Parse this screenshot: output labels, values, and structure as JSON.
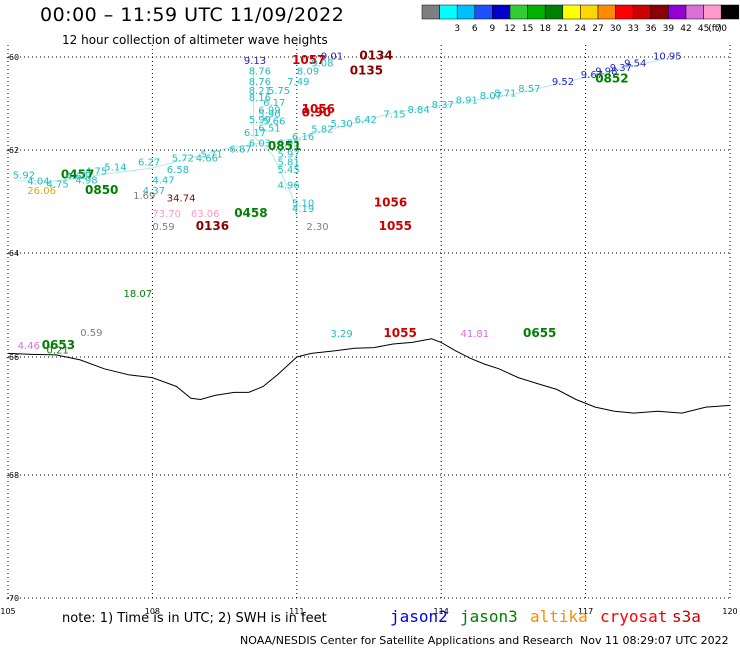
{
  "title": "00:00 – 11:59 UTC 11/09/2022",
  "subtitle": "12 hour collection of altimeter wave heights",
  "legend": {
    "unit": "(ft)",
    "swatches": [
      {
        "label": "",
        "color": "#7f7f7f"
      },
      {
        "label": "3",
        "color": "#00ffff"
      },
      {
        "label": "6",
        "color": "#00bfff"
      },
      {
        "label": "9",
        "color": "#1e50ff"
      },
      {
        "label": "12",
        "color": "#0000cd"
      },
      {
        "label": "15",
        "color": "#32cd32"
      },
      {
        "label": "18",
        "color": "#00b000"
      },
      {
        "label": "21",
        "color": "#008000"
      },
      {
        "label": "24",
        "color": "#ffff00"
      },
      {
        "label": "27",
        "color": "#ffd700"
      },
      {
        "label": "30",
        "color": "#ff8c00"
      },
      {
        "label": "33",
        "color": "#ff0000"
      },
      {
        "label": "36",
        "color": "#cd0000"
      },
      {
        "label": "39",
        "color": "#8b0000"
      },
      {
        "label": "42",
        "color": "#9400d3"
      },
      {
        "label": "45",
        "color": "#da70d6"
      },
      {
        "label": "70",
        "color": "#ff99cc"
      },
      {
        "label": "",
        "color": "#000000"
      }
    ]
  },
  "axes": {
    "lat_labels": [
      "-60",
      "-62",
      "-64",
      "-66",
      "-68",
      "-70"
    ],
    "lon_labels": [
      "105",
      "108",
      "111",
      "114",
      "117",
      "120"
    ]
  },
  "observations": [
    {
      "text": "9.01",
      "lon": 111.5,
      "lat": -60.05,
      "color": "#1e1ecd"
    },
    {
      "text": "0134",
      "lon": 112.3,
      "lat": -60.05,
      "color": "#8b0000",
      "bold": true
    },
    {
      "text": "9.13",
      "lon": 109.9,
      "lat": -60.15,
      "color": "#1e1ecd"
    },
    {
      "text": "1057",
      "lon": 110.9,
      "lat": -60.15,
      "color": "#cd0000",
      "bold": true
    },
    {
      "text": "9.08",
      "lon": 111.3,
      "lat": -60.2,
      "color": "#20c0c0"
    },
    {
      "text": "10.95",
      "lon": 118.4,
      "lat": -60.05,
      "color": "#1e1ecd"
    },
    {
      "text": "9.54",
      "lon": 117.8,
      "lat": -60.2,
      "color": "#1e1ecd"
    },
    {
      "text": "9.37",
      "lon": 117.5,
      "lat": -60.3,
      "color": "#1e1ecd"
    },
    {
      "text": "8.76",
      "lon": 110.0,
      "lat": -60.38,
      "color": "#20c0c0"
    },
    {
      "text": "8.09",
      "lon": 111.0,
      "lat": -60.38,
      "color": "#20c0c0"
    },
    {
      "text": "0135",
      "lon": 112.1,
      "lat": -60.38,
      "color": "#8b0000",
      "bold": true
    },
    {
      "text": "9.98",
      "lon": 117.2,
      "lat": -60.38,
      "color": "#1e1ecd"
    },
    {
      "text": "9.67",
      "lon": 116.9,
      "lat": -60.45,
      "color": "#1e1ecd"
    },
    {
      "text": "0852",
      "lon": 117.2,
      "lat": -60.55,
      "color": "#008000",
      "bold": true
    },
    {
      "text": "8.76",
      "lon": 110.0,
      "lat": -60.6,
      "color": "#20c0c0"
    },
    {
      "text": "7.49",
      "lon": 110.8,
      "lat": -60.6,
      "color": "#20c0c0"
    },
    {
      "text": "9.52",
      "lon": 116.3,
      "lat": -60.6,
      "color": "#1e1ecd"
    },
    {
      "text": "8.57",
      "lon": 115.6,
      "lat": -60.75,
      "color": "#20c0c0"
    },
    {
      "text": "8.21",
      "lon": 110.0,
      "lat": -60.8,
      "color": "#20c0c0"
    },
    {
      "text": "5.75",
      "lon": 110.4,
      "lat": -60.8,
      "color": "#20c0c0"
    },
    {
      "text": "8.71",
      "lon": 115.1,
      "lat": -60.85,
      "color": "#20c0c0"
    },
    {
      "text": "8.16",
      "lon": 110.0,
      "lat": -60.95,
      "color": "#20c0c0"
    },
    {
      "text": "8.07",
      "lon": 114.8,
      "lat": -60.9,
      "color": "#20c0c0"
    },
    {
      "text": "6.17",
      "lon": 110.3,
      "lat": -61.05,
      "color": "#20c0c0"
    },
    {
      "text": "8.91",
      "lon": 114.3,
      "lat": -61.0,
      "color": "#20c0c0"
    },
    {
      "text": "8.37",
      "lon": 113.8,
      "lat": -61.1,
      "color": "#20c0c0"
    },
    {
      "text": "6.99",
      "lon": 110.2,
      "lat": -61.22,
      "color": "#20c0c0"
    },
    {
      "text": "1056",
      "lon": 111.1,
      "lat": -61.2,
      "color": "#cd0000",
      "bold": true
    },
    {
      "text": "0.90",
      "lon": 111.1,
      "lat": -61.28,
      "color": "#cd0000",
      "bold": true
    },
    {
      "text": "8.84",
      "lon": 113.3,
      "lat": -61.2,
      "color": "#20c0c0"
    },
    {
      "text": "7.15",
      "lon": 112.8,
      "lat": -61.3,
      "color": "#20c0c0"
    },
    {
      "text": "5.90",
      "lon": 110.2,
      "lat": -61.3,
      "color": "#20c0c0"
    },
    {
      "text": "5.99",
      "lon": 110.0,
      "lat": -61.42,
      "color": "#20c0c0"
    },
    {
      "text": "5.66",
      "lon": 110.3,
      "lat": -61.45,
      "color": "#20c0c0"
    },
    {
      "text": "6.42",
      "lon": 112.2,
      "lat": -61.42,
      "color": "#20c0c0"
    },
    {
      "text": "5.30",
      "lon": 111.7,
      "lat": -61.5,
      "color": "#20c0c0"
    },
    {
      "text": "6.51",
      "lon": 110.2,
      "lat": -61.6,
      "color": "#20c0c0"
    },
    {
      "text": "5.82",
      "lon": 111.3,
      "lat": -61.62,
      "color": "#20c0c0"
    },
    {
      "text": "6.17",
      "lon": 109.9,
      "lat": -61.7,
      "color": "#20c0c0"
    },
    {
      "text": "6.16",
      "lon": 110.9,
      "lat": -61.78,
      "color": "#20c0c0"
    },
    {
      "text": "6.03",
      "lon": 110.0,
      "lat": -61.92,
      "color": "#20c0c0"
    },
    {
      "text": "6.95",
      "lon": 110.6,
      "lat": -61.92,
      "color": "#20c0c0"
    },
    {
      "text": "6.87",
      "lon": 109.6,
      "lat": -62.05,
      "color": "#20c0c0"
    },
    {
      "text": "0851",
      "lon": 110.4,
      "lat": -62.0,
      "color": "#008000",
      "bold": true
    },
    {
      "text": "5.71",
      "lon": 109.0,
      "lat": -62.15,
      "color": "#20c0c0"
    },
    {
      "text": "5.72",
      "lon": 108.4,
      "lat": -62.22,
      "color": "#20c0c0"
    },
    {
      "text": "4.66",
      "lon": 108.9,
      "lat": -62.22,
      "color": "#20c0c0"
    },
    {
      "text": "5.97",
      "lon": 110.6,
      "lat": -62.15,
      "color": "#20c0c0"
    },
    {
      "text": "6.27",
      "lon": 107.7,
      "lat": -62.3,
      "color": "#20c0c0"
    },
    {
      "text": "5.81",
      "lon": 110.6,
      "lat": -62.3,
      "color": "#20c0c0"
    },
    {
      "text": "6.58",
      "lon": 108.3,
      "lat": -62.45,
      "color": "#20c0c0"
    },
    {
      "text": "5.14",
      "lon": 107.0,
      "lat": -62.4,
      "color": "#20c0c0"
    },
    {
      "text": "5.45",
      "lon": 110.6,
      "lat": -62.45,
      "color": "#20c0c0"
    },
    {
      "text": "4.75",
      "lon": 106.6,
      "lat": -62.48,
      "color": "#20c0c0"
    },
    {
      "text": "5.92",
      "lon": 105.1,
      "lat": -62.55,
      "color": "#20c0c0"
    },
    {
      "text": "0457",
      "lon": 106.1,
      "lat": -62.55,
      "color": "#008000",
      "bold": true
    },
    {
      "text": "4.60",
      "lon": 106.2,
      "lat": -62.57,
      "color": "#20c0c0"
    },
    {
      "text": "4.47",
      "lon": 108.0,
      "lat": -62.65,
      "color": "#20c0c0"
    },
    {
      "text": "4.04",
      "lon": 105.4,
      "lat": -62.67,
      "color": "#20c0c0"
    },
    {
      "text": "4.75",
      "lon": 105.8,
      "lat": -62.73,
      "color": "#20c0c0"
    },
    {
      "text": "4.98",
      "lon": 106.4,
      "lat": -62.65,
      "color": "#20c0c0"
    },
    {
      "text": "4.96",
      "lon": 110.6,
      "lat": -62.75,
      "color": "#20c0c0"
    },
    {
      "text": "26.06",
      "lon": 105.4,
      "lat": -62.85,
      "color": "#e0a800"
    },
    {
      "text": "0850",
      "lon": 106.6,
      "lat": -62.85,
      "color": "#008000",
      "bold": true
    },
    {
      "text": "4.37",
      "lon": 107.8,
      "lat": -62.85,
      "color": "#20c0c0"
    },
    {
      "text": "1.69",
      "lon": 107.6,
      "lat": -62.95,
      "color": "#7f7f7f"
    },
    {
      "text": "34.74",
      "lon": 108.3,
      "lat": -63.0,
      "color": "#8b0000"
    },
    {
      "text": "5.10",
      "lon": 110.9,
      "lat": -63.1,
      "color": "#20c0c0"
    },
    {
      "text": "4.19",
      "lon": 110.9,
      "lat": -63.2,
      "color": "#20c0c0"
    },
    {
      "text": "1056",
      "lon": 112.6,
      "lat": -63.1,
      "color": "#cd0000",
      "bold": true
    },
    {
      "text": "73.70",
      "lon": 108.0,
      "lat": -63.3,
      "color": "#ff99cc"
    },
    {
      "text": "63.06",
      "lon": 108.8,
      "lat": -63.3,
      "color": "#ff99cc"
    },
    {
      "text": "0458",
      "lon": 109.7,
      "lat": -63.3,
      "color": "#008000",
      "bold": true
    },
    {
      "text": "0.59",
      "lon": 108.0,
      "lat": -63.55,
      "color": "#7f7f7f"
    },
    {
      "text": "0136",
      "lon": 108.9,
      "lat": -63.55,
      "color": "#8b0000",
      "bold": true
    },
    {
      "text": "2.30",
      "lon": 111.2,
      "lat": -63.55,
      "color": "#7f7f7f"
    },
    {
      "text": "1055",
      "lon": 112.7,
      "lat": -63.55,
      "color": "#cd0000",
      "bold": true
    },
    {
      "text": "18.07",
      "lon": 107.4,
      "lat": -64.85,
      "color": "#008000"
    },
    {
      "text": "0.59",
      "lon": 106.5,
      "lat": -65.6,
      "color": "#7f7f7f"
    },
    {
      "text": "3.29",
      "lon": 111.7,
      "lat": -65.62,
      "color": "#20c0c0"
    },
    {
      "text": "1055",
      "lon": 112.8,
      "lat": -65.62,
      "color": "#cd0000",
      "bold": true
    },
    {
      "text": "41.81",
      "lon": 114.4,
      "lat": -65.62,
      "color": "#da70d6"
    },
    {
      "text": "0655",
      "lon": 115.7,
      "lat": -65.62,
      "color": "#008000",
      "bold": true
    },
    {
      "text": "4.46",
      "lon": 105.2,
      "lat": -65.85,
      "color": "#da70d6"
    },
    {
      "text": "0653",
      "lon": 105.7,
      "lat": -65.85,
      "color": "#008000",
      "bold": true
    },
    {
      "text": "0.21",
      "lon": 105.8,
      "lat": -65.93,
      "color": "#008000"
    }
  ],
  "tracks": [
    {
      "color": "#20c0c0",
      "points": [
        [
          105.2,
          -62.6
        ],
        [
          106.0,
          -62.6
        ],
        [
          108.0,
          -62.35
        ],
        [
          109.6,
          -61.95
        ],
        [
          111.0,
          -61.75
        ],
        [
          113.0,
          -61.2
        ],
        [
          115.5,
          -60.8
        ],
        [
          118.6,
          -60.05
        ]
      ]
    },
    {
      "color": "#20c0c0",
      "points": [
        [
          110.1,
          -60.2
        ],
        [
          110.1,
          -61.7
        ],
        [
          110.5,
          -62.1
        ],
        [
          110.9,
          -62.9
        ],
        [
          111.0,
          -63.3
        ]
      ]
    }
  ],
  "coastline": [
    [
      105.0,
      -65.93
    ],
    [
      105.5,
      -65.95
    ],
    [
      106.0,
      -65.96
    ],
    [
      106.5,
      -66.05
    ],
    [
      107.0,
      -66.2
    ],
    [
      107.5,
      -66.3
    ],
    [
      108.0,
      -66.35
    ],
    [
      108.5,
      -66.5
    ],
    [
      108.8,
      -66.7
    ],
    [
      109.0,
      -66.72
    ],
    [
      109.3,
      -66.65
    ],
    [
      109.7,
      -66.6
    ],
    [
      110.0,
      -66.6
    ],
    [
      110.3,
      -66.5
    ],
    [
      110.6,
      -66.3
    ],
    [
      110.8,
      -66.15
    ],
    [
      111.0,
      -66.0
    ],
    [
      111.3,
      -65.93
    ],
    [
      111.8,
      -65.88
    ],
    [
      112.2,
      -65.83
    ],
    [
      112.6,
      -65.82
    ],
    [
      113.0,
      -65.75
    ],
    [
      113.4,
      -65.72
    ],
    [
      113.8,
      -65.65
    ],
    [
      114.0,
      -65.72
    ],
    [
      114.3,
      -65.88
    ],
    [
      114.6,
      -66.02
    ],
    [
      114.9,
      -66.12
    ],
    [
      115.2,
      -66.2
    ],
    [
      115.6,
      -66.35
    ],
    [
      116.0,
      -66.45
    ],
    [
      116.4,
      -66.55
    ],
    [
      116.8,
      -66.72
    ],
    [
      117.2,
      -66.85
    ],
    [
      117.6,
      -66.92
    ],
    [
      118.0,
      -66.95
    ],
    [
      118.5,
      -66.92
    ],
    [
      119.0,
      -66.95
    ],
    [
      119.5,
      -66.85
    ],
    [
      120.0,
      -66.82
    ]
  ],
  "footer": {
    "note": "note:  1) Time is in UTC; 2) SWH is in feet",
    "credit": "NOAA/NESDIS Center for Satellite Applications and Research",
    "timestamp": "Nov 11 08:29:07 UTC 2022"
  },
  "satellites": [
    {
      "name": "jason2",
      "color": "#0000ee"
    },
    {
      "name": "jason3",
      "color": "#008000"
    },
    {
      "name": "altika",
      "color": "#ff8c00"
    },
    {
      "name": "cryosat",
      "color": "#ff0000"
    },
    {
      "name": "s3a",
      "color": "#cd0000"
    }
  ]
}
